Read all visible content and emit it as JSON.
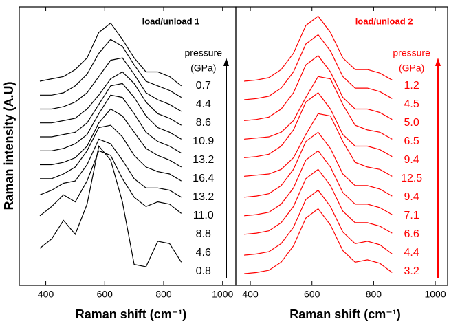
{
  "chart_data": [
    {
      "type": "line",
      "title": "load/unload 1",
      "xlabel": "Raman shift (cm⁻¹)",
      "ylabel": "Raman intensity (A.U)",
      "annotations": [
        "pressure",
        "(GPa)"
      ],
      "color": "#000000",
      "xlim": [
        310,
        1045
      ],
      "ylim": [
        0,
        12
      ],
      "xticks": [
        400,
        600,
        800,
        1000
      ],
      "x": [
        380,
        420,
        460,
        500,
        540,
        580,
        620,
        660,
        700,
        740,
        780,
        820,
        860
      ],
      "series": [
        {
          "name": "0.7",
          "values": [
            8.8,
            8.9,
            9.0,
            9.3,
            9.8,
            10.9,
            11.3,
            10.6,
            9.8,
            9.2,
            9.2,
            9.0,
            8.6
          ]
        },
        {
          "name": "4.4",
          "values": [
            8.2,
            8.2,
            8.3,
            8.6,
            9.1,
            10.0,
            10.6,
            10.3,
            9.5,
            8.8,
            8.6,
            8.4,
            8.1
          ]
        },
        {
          "name": "8.6",
          "values": [
            7.6,
            7.6,
            7.7,
            7.9,
            8.3,
            9.0,
            9.7,
            9.8,
            9.1,
            8.3,
            8.0,
            7.8,
            7.5
          ]
        },
        {
          "name": "10.9",
          "values": [
            7.0,
            7.0,
            7.1,
            7.2,
            7.6,
            8.2,
            8.9,
            9.2,
            8.7,
            7.9,
            7.4,
            7.2,
            6.9
          ]
        },
        {
          "name": "13.2",
          "values": [
            6.4,
            6.4,
            6.5,
            6.6,
            7.0,
            7.8,
            8.6,
            8.7,
            8.1,
            7.3,
            6.8,
            6.6,
            6.3
          ]
        },
        {
          "name": "16.4",
          "values": [
            5.8,
            5.8,
            5.9,
            6.1,
            6.5,
            7.4,
            8.2,
            8.1,
            7.4,
            6.6,
            6.2,
            6.0,
            5.7
          ]
        },
        {
          "name": "13.2",
          "values": [
            5.2,
            5.2,
            5.3,
            5.5,
            6.0,
            7.0,
            7.6,
            7.3,
            6.6,
            5.9,
            5.6,
            5.4,
            5.1
          ]
        },
        {
          "name": "11.0",
          "values": [
            4.6,
            4.6,
            4.8,
            5.1,
            5.8,
            6.8,
            6.9,
            6.4,
            5.6,
            5.1,
            4.9,
            4.8,
            4.5
          ]
        },
        {
          "name": "8.8",
          "values": [
            3.9,
            4.1,
            4.4,
            4.5,
            5.2,
            6.3,
            6.1,
            5.4,
            4.6,
            4.2,
            4.2,
            4.1,
            3.8
          ]
        },
        {
          "name": "4.6",
          "values": [
            3.0,
            3.4,
            3.9,
            3.6,
            4.5,
            5.8,
            5.6,
            4.6,
            3.8,
            3.4,
            3.6,
            3.5,
            3.1
          ]
        },
        {
          "name": "0.8",
          "values": [
            1.6,
            2.0,
            2.8,
            2.2,
            3.5,
            6.0,
            5.4,
            3.6,
            0.9,
            0.8,
            1.9,
            1.8,
            1.0
          ]
        }
      ]
    },
    {
      "type": "line",
      "title": "load/unload 2",
      "xlabel": "Raman shift (cm⁻¹)",
      "annotations": [
        "pressure",
        "(GPa)"
      ],
      "color": "#ff0000",
      "xlim": [
        353,
        1040
      ],
      "ylim": [
        0,
        12
      ],
      "xticks": [
        400,
        600,
        800,
        1000
      ],
      "x": [
        380,
        420,
        460,
        500,
        540,
        580,
        620,
        660,
        700,
        740,
        780,
        820,
        860
      ],
      "series": [
        {
          "name": "1.2",
          "values": [
            8.8,
            8.85,
            8.95,
            9.3,
            10.0,
            11.2,
            11.6,
            10.9,
            9.8,
            9.3,
            9.3,
            9.15,
            8.85
          ]
        },
        {
          "name": "4.5",
          "values": [
            8.0,
            8.05,
            8.15,
            8.5,
            9.2,
            10.4,
            10.8,
            10.1,
            9.0,
            8.5,
            8.5,
            8.35,
            8.05
          ]
        },
        {
          "name": "5.0",
          "values": [
            7.1,
            7.15,
            7.25,
            7.6,
            8.3,
            9.5,
            9.9,
            9.2,
            8.1,
            7.6,
            7.6,
            7.45,
            7.15
          ]
        },
        {
          "name": "6.5",
          "values": [
            6.3,
            6.35,
            6.4,
            6.6,
            7.1,
            8.1,
            9.0,
            8.9,
            7.8,
            6.9,
            6.7,
            6.6,
            6.3
          ]
        },
        {
          "name": "9.4",
          "values": [
            5.5,
            5.55,
            5.65,
            6.0,
            6.7,
            7.9,
            8.3,
            7.6,
            6.5,
            6.0,
            6.0,
            5.85,
            5.55
          ]
        },
        {
          "name": "12.5",
          "values": [
            4.7,
            4.75,
            4.8,
            5.0,
            5.5,
            6.5,
            7.4,
            7.3,
            6.2,
            5.3,
            5.1,
            5.0,
            4.7
          ]
        },
        {
          "name": "9.4",
          "values": [
            3.8,
            3.85,
            3.95,
            4.3,
            5.0,
            6.2,
            6.6,
            5.9,
            4.8,
            4.3,
            4.3,
            4.15,
            3.85
          ]
        },
        {
          "name": "7.1",
          "values": [
            3.0,
            3.05,
            3.15,
            3.5,
            4.2,
            5.4,
            5.8,
            5.1,
            4.0,
            3.5,
            3.5,
            3.35,
            3.05
          ]
        },
        {
          "name": "6.6",
          "values": [
            2.2,
            2.25,
            2.35,
            2.7,
            3.4,
            4.6,
            5.0,
            4.3,
            3.2,
            2.7,
            2.7,
            2.55,
            2.25
          ]
        },
        {
          "name": "4.4",
          "values": [
            1.3,
            1.35,
            1.45,
            1.8,
            2.5,
            3.7,
            4.1,
            3.4,
            2.3,
            1.8,
            1.9,
            1.75,
            1.35
          ]
        },
        {
          "name": "3.2",
          "values": [
            0.5,
            0.55,
            0.65,
            1.0,
            1.7,
            2.9,
            3.3,
            2.6,
            1.5,
            1.0,
            1.1,
            0.95,
            0.55
          ]
        }
      ]
    }
  ]
}
